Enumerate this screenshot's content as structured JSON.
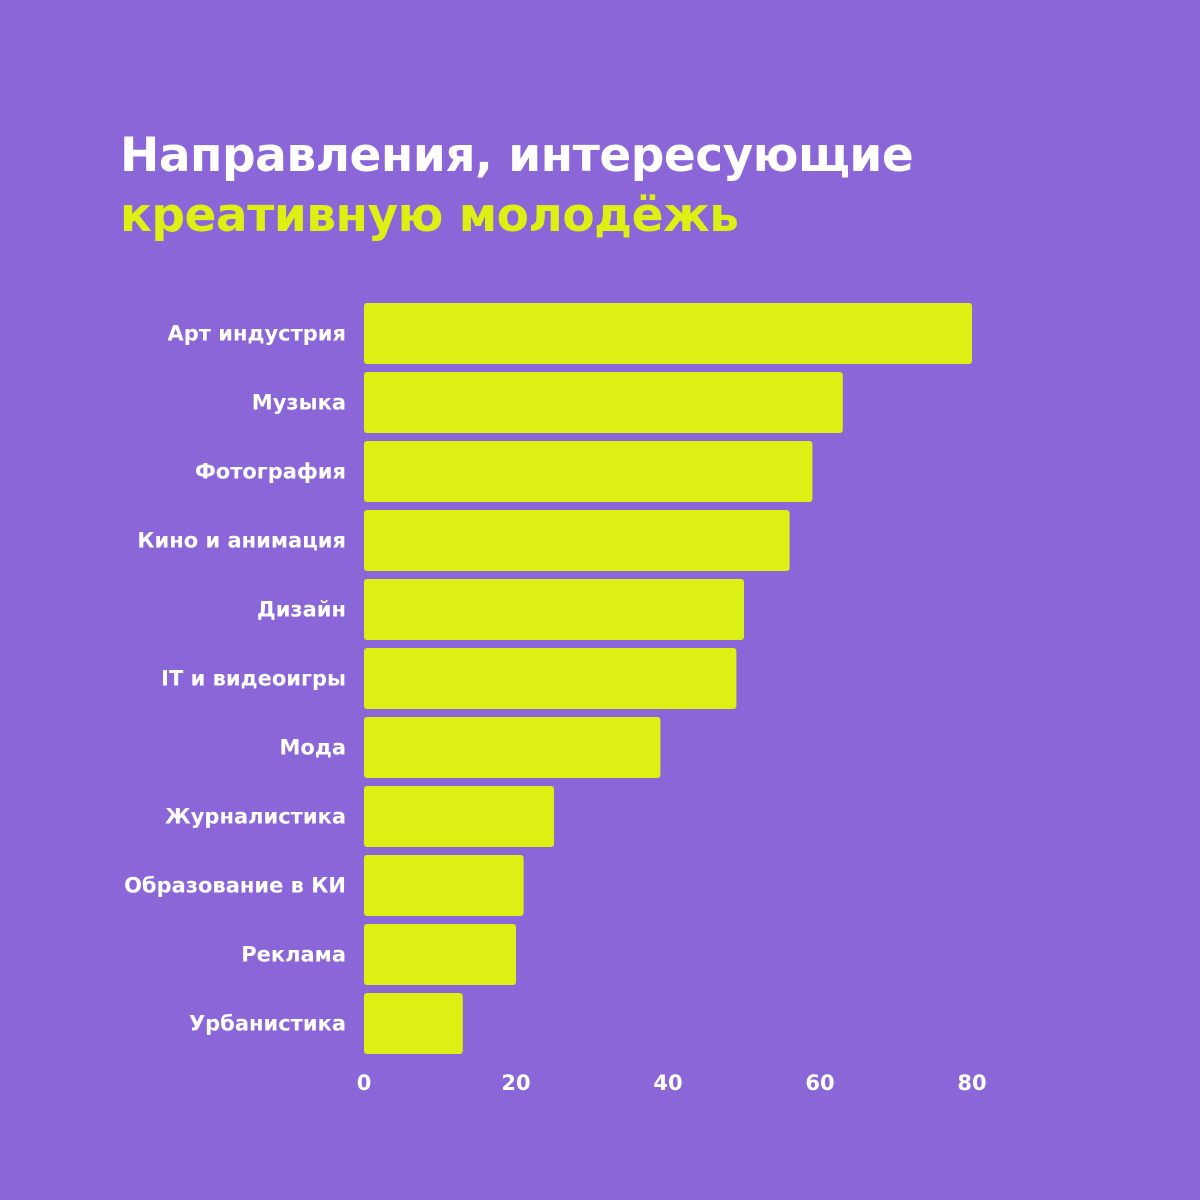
{
  "title": {
    "line1": "Направления, интересующие",
    "line2": "креативную молодёжь"
  },
  "colors": {
    "background": "#8a66d9",
    "bar": "#dcf013",
    "title_accent": "#dcf013",
    "text": "#ffffff"
  },
  "chart_data": {
    "type": "bar",
    "orientation": "horizontal",
    "title": "Направления, интересующие креативную молодёжь",
    "categories": [
      "Арт индустрия",
      "Музыка",
      "Фотография",
      "Кино и анимация",
      "Дизайн",
      "IT и видеоигры",
      "Мода",
      "Журналистика",
      "Образование в КИ",
      "Реклама",
      "Урбанистика"
    ],
    "values": [
      80,
      63,
      59,
      56,
      50,
      49,
      39,
      25,
      21,
      20,
      13
    ],
    "xlim": [
      0,
      80
    ],
    "xticks": [
      0,
      20,
      40,
      60,
      80
    ],
    "xtick_labels": [
      "0",
      "20",
      "40",
      "60",
      "80"
    ],
    "grid": false,
    "legend": "none"
  }
}
